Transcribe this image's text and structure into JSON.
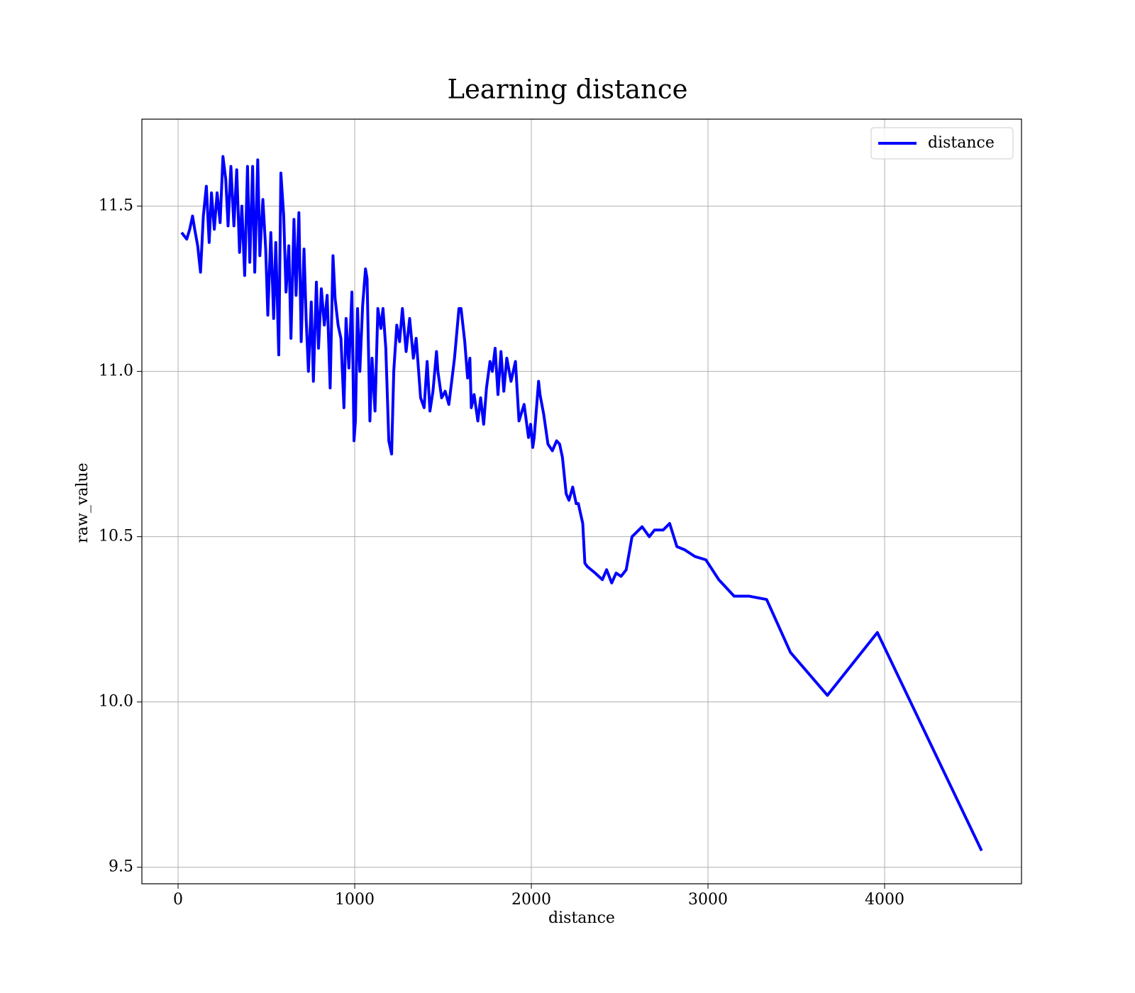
{
  "chart_data": {
    "type": "line",
    "title": "Learning distance",
    "xlabel": "distance",
    "ylabel": "raw_value",
    "x": [
      20,
      49,
      66,
      82,
      94,
      111,
      127,
      143,
      160,
      176,
      189,
      205,
      221,
      238,
      254,
      270,
      283,
      299,
      316,
      332,
      348,
      361,
      377,
      393,
      406,
      422,
      434,
      451,
      463,
      480,
      496,
      508,
      525,
      541,
      553,
      570,
      582,
      598,
      611,
      627,
      639,
      656,
      668,
      684,
      697,
      713,
      725,
      738,
      754,
      766,
      783,
      795,
      811,
      828,
      844,
      861,
      877,
      889,
      906,
      922,
      939,
      951,
      967,
      984,
      996,
      1004,
      1016,
      1029,
      1045,
      1061,
      1070,
      1086,
      1098,
      1115,
      1131,
      1148,
      1160,
      1176,
      1193,
      1209,
      1221,
      1238,
      1254,
      1270,
      1291,
      1311,
      1332,
      1348,
      1373,
      1393,
      1410,
      1426,
      1443,
      1463,
      1471,
      1492,
      1512,
      1533,
      1549,
      1565,
      1590,
      1602,
      1623,
      1639,
      1652,
      1660,
      1676,
      1697,
      1713,
      1730,
      1746,
      1766,
      1779,
      1795,
      1811,
      1828,
      1844,
      1861,
      1885,
      1910,
      1930,
      1959,
      1984,
      1996,
      2008,
      2016,
      2041,
      2049,
      2070,
      2094,
      2119,
      2143,
      2160,
      2176,
      2197,
      2213,
      2234,
      2254,
      2266,
      2291,
      2303,
      2316,
      2361,
      2402,
      2426,
      2455,
      2480,
      2508,
      2537,
      2570,
      2627,
      2668,
      2697,
      2746,
      2783,
      2824,
      2869,
      2926,
      2988,
      3061,
      3148,
      3234,
      3332,
      3467,
      3676,
      3959,
      4549
    ],
    "series": [
      {
        "name": "distance",
        "color": "#0000ff",
        "values": [
          11.42,
          11.4,
          11.43,
          11.47,
          11.43,
          11.38,
          11.3,
          11.47,
          11.56,
          11.39,
          11.54,
          11.43,
          11.54,
          11.45,
          11.65,
          11.58,
          11.44,
          11.62,
          11.44,
          11.61,
          11.36,
          11.5,
          11.29,
          11.62,
          11.33,
          11.62,
          11.3,
          11.64,
          11.35,
          11.52,
          11.37,
          11.17,
          11.42,
          11.16,
          11.39,
          11.05,
          11.6,
          11.47,
          11.24,
          11.38,
          11.1,
          11.46,
          11.23,
          11.48,
          11.09,
          11.37,
          11.16,
          11.0,
          11.21,
          10.97,
          11.27,
          11.07,
          11.25,
          11.14,
          11.23,
          10.95,
          11.35,
          11.22,
          11.14,
          11.1,
          10.89,
          11.16,
          11.01,
          11.24,
          10.79,
          10.85,
          11.19,
          11.0,
          11.2,
          11.31,
          11.28,
          10.85,
          11.04,
          10.88,
          11.19,
          11.13,
          11.19,
          11.07,
          10.79,
          10.75,
          11.0,
          11.14,
          11.09,
          11.19,
          11.06,
          11.16,
          11.04,
          11.1,
          10.92,
          10.89,
          11.03,
          10.88,
          10.94,
          11.06,
          11.0,
          10.92,
          10.94,
          10.9,
          10.97,
          11.04,
          11.19,
          11.19,
          11.09,
          10.98,
          11.04,
          10.89,
          10.93,
          10.85,
          10.92,
          10.84,
          10.95,
          11.03,
          11.0,
          11.07,
          10.93,
          11.06,
          10.94,
          11.04,
          10.97,
          11.03,
          10.85,
          10.9,
          10.8,
          10.84,
          10.77,
          10.8,
          10.97,
          10.93,
          10.87,
          10.78,
          10.76,
          10.79,
          10.78,
          10.74,
          10.63,
          10.61,
          10.65,
          10.6,
          10.6,
          10.54,
          10.42,
          10.41,
          10.39,
          10.37,
          10.4,
          10.36,
          10.39,
          10.38,
          10.4,
          10.5,
          10.53,
          10.5,
          10.52,
          10.52,
          10.54,
          10.47,
          10.46,
          10.44,
          10.43,
          10.37,
          10.32,
          10.32,
          10.31,
          10.15,
          10.02,
          10.21,
          9.55
        ]
      }
    ],
    "xlim": [
      -205,
      4775
    ],
    "ylim": [
      9.45,
      11.763
    ],
    "xticks": [
      0,
      1000,
      2000,
      3000,
      4000
    ],
    "yticks": [
      9.5,
      {
        "value": 10,
        "label": "10.0"
      },
      10.5,
      {
        "value": 11,
        "label": "11.0"
      },
      11.5
    ],
    "grid": true,
    "legend": "upper right"
  }
}
